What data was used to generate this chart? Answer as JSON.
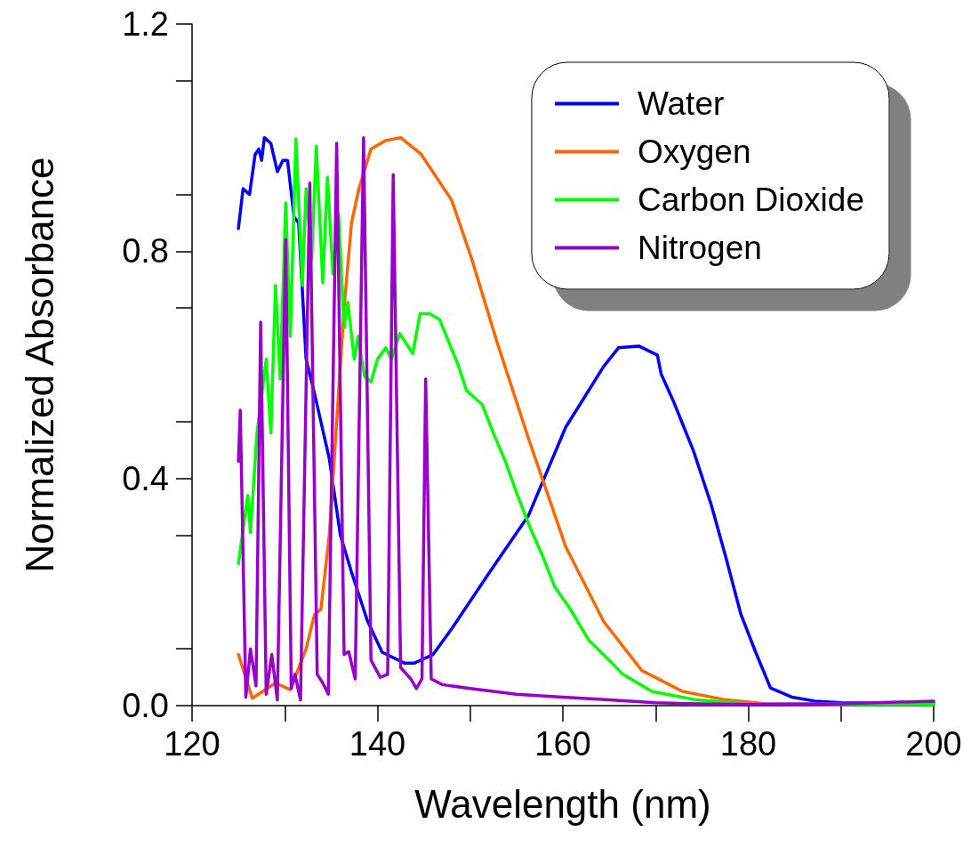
{
  "chart_data": {
    "type": "line",
    "xlabel": "Wavelength (nm)",
    "ylabel": "Normalized Absorbance",
    "xlim": [
      120,
      200
    ],
    "ylim": [
      0,
      1.2
    ],
    "xticks": [
      120,
      140,
      160,
      180,
      200
    ],
    "yticks": [
      {
        "value": 0,
        "label": "0.0"
      },
      {
        "value": 0.4,
        "label": "0.4"
      },
      {
        "value": 0.8,
        "label": "0.8"
      },
      {
        "value": 1.2,
        "label": "1.2"
      }
    ],
    "grid": false,
    "legend": "top right",
    "marker": "none",
    "line_style": "solid",
    "series": [
      {
        "name": "Water",
        "color": "#0000ff",
        "x": [
          125,
          125.5,
          126.2,
          126.8,
          127.2,
          127.5,
          127.8,
          128.5,
          129.2,
          129.8,
          130.3,
          131,
          131.5,
          132.3,
          133.2,
          134.8,
          136,
          137.2,
          138.9,
          140.5,
          142.9,
          144,
          146,
          148,
          152.1,
          156.3,
          160.3,
          164.4,
          166,
          168.2,
          170.2,
          170.6,
          171.9,
          174.1,
          176,
          177.6,
          179.2,
          180.8,
          182.4,
          184.7,
          187.2,
          190,
          195,
          200
        ],
        "values": [
          0.84,
          0.91,
          0.9,
          0.97,
          0.98,
          0.96,
          1.0,
          0.99,
          0.94,
          0.96,
          0.96,
          0.86,
          0.85,
          0.61,
          0.55,
          0.435,
          0.3,
          0.235,
          0.15,
          0.094,
          0.075,
          0.075,
          0.09,
          0.135,
          0.235,
          0.335,
          0.49,
          0.597,
          0.63,
          0.633,
          0.617,
          0.584,
          0.537,
          0.448,
          0.354,
          0.26,
          0.161,
          0.094,
          0.031,
          0.015,
          0.008,
          0.005,
          0.004,
          0.005
        ]
      },
      {
        "name": "Oxygen",
        "color": "#ff6600",
        "x": [
          125,
          126.5,
          129,
          130.6,
          132.3,
          133.2,
          133.9,
          134.8,
          135.6,
          136.4,
          137.2,
          138,
          139.3,
          140.9,
          142.5,
          144.7,
          148,
          150.1,
          152.9,
          156.3,
          160.3,
          164.4,
          168.5,
          172.9,
          177.6,
          182,
          190,
          200
        ],
        "values": [
          0.09,
          0.013,
          0.04,
          0.028,
          0.1,
          0.16,
          0.17,
          0.3,
          0.5,
          0.7,
          0.85,
          0.91,
          0.98,
          0.995,
          1.0,
          0.971,
          0.89,
          0.79,
          0.64,
          0.47,
          0.28,
          0.148,
          0.062,
          0.025,
          0.01,
          0.003,
          0.003,
          0.003
        ]
      },
      {
        "name": "Carbon Dioxide",
        "color": "#00ff00",
        "x": [
          125,
          126,
          126.3,
          127,
          128,
          128.5,
          129,
          129.5,
          130.1,
          130.6,
          131.2,
          131.9,
          132.3,
          132.9,
          133.4,
          134.1,
          134.6,
          135.2,
          135.8,
          136.4,
          136.8,
          137.5,
          137.9,
          138.6,
          139.3,
          140,
          140.9,
          141.5,
          142.4,
          143.8,
          144.6,
          145.6,
          146.7,
          148.7,
          149.6,
          151.3,
          152.5,
          153.8,
          155,
          156.3,
          157.9,
          159.1,
          160.8,
          162.8,
          165.3,
          166.4,
          169.6,
          174.4,
          180,
          190,
          200
        ],
        "values": [
          0.25,
          0.37,
          0.305,
          0.48,
          0.61,
          0.48,
          0.74,
          0.575,
          0.885,
          0.65,
          0.998,
          0.74,
          0.91,
          0.785,
          0.985,
          0.745,
          0.93,
          0.76,
          0.865,
          0.665,
          0.71,
          0.61,
          0.65,
          0.58,
          0.57,
          0.61,
          0.63,
          0.61,
          0.655,
          0.62,
          0.69,
          0.69,
          0.68,
          0.6,
          0.555,
          0.53,
          0.48,
          0.43,
          0.375,
          0.32,
          0.26,
          0.21,
          0.17,
          0.115,
          0.075,
          0.056,
          0.025,
          0.01,
          0.003,
          0.002,
          0.002
        ]
      },
      {
        "name": "Nitrogen",
        "color": "#9900cc",
        "x": [
          125,
          125.2,
          125.8,
          126.3,
          126.9,
          127.4,
          128,
          128.6,
          129.2,
          130.1,
          130.7,
          131.1,
          131.7,
          132.7,
          133.5,
          134.1,
          134.7,
          135.6,
          136.4,
          136.9,
          137.6,
          138.5,
          139.3,
          140.3,
          141.1,
          141.7,
          142.5,
          143.6,
          144.2,
          144.8,
          145.2,
          145.8,
          147,
          150,
          155,
          160,
          165,
          170,
          175,
          180,
          190,
          200
        ],
        "values": [
          0.43,
          0.52,
          0.015,
          0.1,
          0.035,
          0.675,
          0.02,
          0.09,
          0.01,
          0.82,
          0.03,
          0.055,
          0.01,
          0.92,
          0.055,
          0.04,
          0.02,
          0.99,
          0.09,
          0.095,
          0.047,
          1.0,
          0.08,
          0.05,
          0.055,
          0.935,
          0.067,
          0.047,
          0.03,
          0.047,
          0.575,
          0.047,
          0.037,
          0.03,
          0.02,
          0.015,
          0.01,
          0.005,
          0.003,
          0.002,
          0.003,
          0.008
        ]
      }
    ]
  }
}
